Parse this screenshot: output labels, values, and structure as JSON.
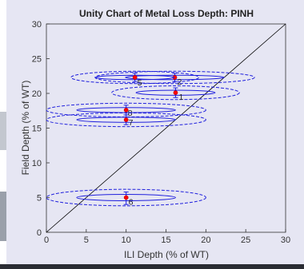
{
  "chart_data": {
    "type": "scatter",
    "title": "Unity Chart of Metal Loss Depth: PINH",
    "xlabel": "ILI Depth (% of WT)",
    "ylabel": "Field Depth (% of WT)",
    "xlim": [
      0,
      30
    ],
    "ylim": [
      0,
      30
    ],
    "x_ticks": [
      "0",
      "5",
      "10",
      "15",
      "20",
      "25",
      "30"
    ],
    "y_ticks": [
      "0",
      "5",
      "10",
      "15",
      "20",
      "25",
      "30"
    ],
    "grid": false,
    "unity_line": [
      [
        0,
        0
      ],
      [
        30,
        30
      ]
    ],
    "points": [
      {
        "label": "1",
        "x": 16.2,
        "y": 20.1,
        "x_err": [
          8.2,
          24.2
        ],
        "y_err": [
          19.4,
          20.8
        ]
      },
      {
        "label": "2",
        "x": 16.1,
        "y": 22.3,
        "x_err": [
          6.1,
          26.1
        ],
        "y_err": [
          21.7,
          22.9
        ]
      },
      {
        "label": "5",
        "x": 11.1,
        "y": 22.3,
        "x_err": [
          3.1,
          19.1
        ],
        "y_err": [
          21.7,
          22.9
        ]
      },
      {
        "label": "8",
        "x": 10.0,
        "y": 17.6,
        "x_err": [
          0.0,
          20.0
        ],
        "y_err": [
          16.9,
          18.3
        ]
      },
      {
        "label": "7",
        "x": 10.0,
        "y": 16.2,
        "x_err": [
          0.0,
          20.0
        ],
        "y_err": [
          15.5,
          16.9
        ]
      },
      {
        "label": "6",
        "x": 10.0,
        "y": 5.0,
        "x_err": [
          0.0,
          20.0
        ],
        "y_err": [
          4.0,
          5.8
        ]
      }
    ],
    "colors": {
      "marker": "#ff0000",
      "ellipse": "#1f1fdd",
      "error_bar": "#1f1fdd",
      "unity_line": "#000000"
    }
  }
}
